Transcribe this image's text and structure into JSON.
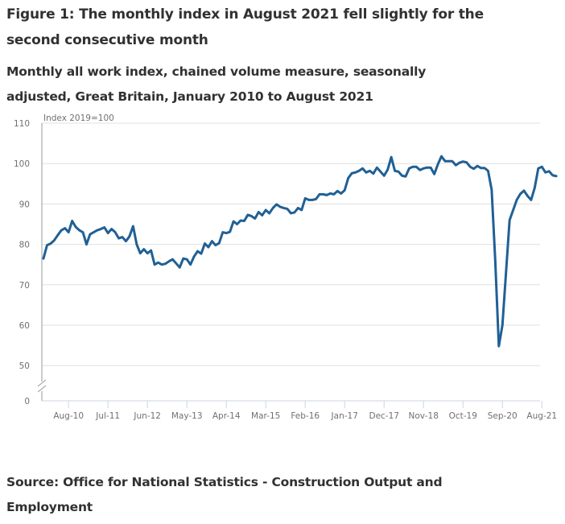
{
  "title": "Figure 1: The monthly index in August 2021 fell slightly for the second consecutive month",
  "subtitle": "Monthly all work index, chained volume measure, seasonally adjusted, Great Britain, January 2010 to August 2021",
  "source": "Source: Office for National Statistics - Construction Output and Employment",
  "chart_data": {
    "type": "line",
    "title": "Figure 1: The monthly index in August 2021 fell slightly for the second consecutive month",
    "subtitle": "Monthly all work index, chained volume measure, seasonally adjusted, Great Britain, January 2010 to August 2021",
    "ylabel": "Index 2019=100",
    "xlabel": "",
    "ylim": [
      0,
      110
    ],
    "y_axis_break": [
      0,
      50
    ],
    "yticks": [
      0,
      50,
      60,
      70,
      80,
      90,
      100,
      110
    ],
    "xticks": [
      "Aug-10",
      "Jul-11",
      "Jun-12",
      "May-13",
      "Apr-14",
      "Mar-15",
      "Feb-16",
      "Jan-17",
      "Dec-17",
      "Nov-18",
      "Oct-19",
      "Sep-20",
      "Aug-21"
    ],
    "x_start": "Jan-10",
    "x_end": "Aug-21",
    "grid": true,
    "legend": "none",
    "line_color": "#206095",
    "series": [
      {
        "name": "Monthly all work index",
        "values": [
          76.5,
          79.8,
          80.2,
          81.0,
          82.3,
          83.5,
          84.0,
          83.0,
          85.8,
          84.3,
          83.5,
          83.0,
          80.0,
          82.5,
          83.0,
          83.5,
          83.8,
          84.2,
          82.8,
          83.8,
          83.0,
          81.5,
          81.8,
          80.8,
          82.0,
          84.5,
          80.0,
          77.8,
          78.8,
          77.8,
          78.5,
          75.0,
          75.5,
          75.0,
          75.2,
          75.8,
          76.3,
          75.3,
          74.3,
          76.5,
          76.3,
          75.0,
          77.0,
          78.3,
          77.7,
          80.2,
          79.3,
          80.8,
          79.8,
          80.3,
          83.0,
          82.8,
          83.1,
          85.7,
          85.0,
          85.9,
          85.8,
          87.3,
          87.0,
          86.4,
          88.0,
          87.2,
          88.5,
          87.7,
          89.0,
          89.9,
          89.3,
          89.0,
          88.8,
          87.7,
          87.9,
          89.0,
          88.5,
          91.4,
          91.0,
          91.0,
          91.2,
          92.4,
          92.4,
          92.2,
          92.6,
          92.4,
          93.2,
          92.6,
          93.4,
          96.4,
          97.6,
          97.8,
          98.2,
          98.8,
          97.8,
          98.2,
          97.5,
          99.0,
          98.0,
          97.0,
          98.5,
          101.6,
          98.2,
          98.0,
          97.0,
          96.8,
          98.8,
          99.2,
          99.2,
          98.4,
          98.8,
          99.0,
          99.0,
          97.4,
          99.8,
          101.8,
          100.6,
          100.6,
          100.6,
          99.6,
          100.2,
          100.5,
          100.3,
          99.2,
          98.7,
          99.4,
          98.9,
          98.9,
          98.2,
          93.5,
          76.0,
          54.8,
          60.0,
          73.0,
          86.0,
          88.5,
          91.0,
          92.5,
          93.3,
          92.0,
          91.0,
          94.0,
          98.8,
          99.2,
          97.8,
          98.1,
          97.1,
          96.9
        ]
      }
    ]
  }
}
